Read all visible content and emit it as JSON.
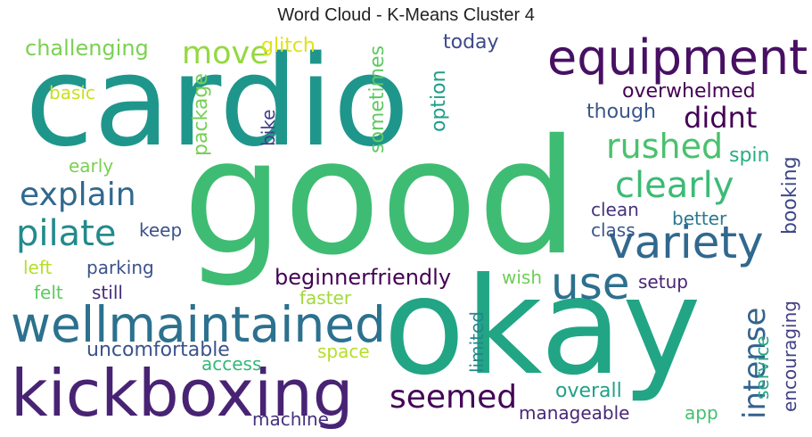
{
  "chart_data": {
    "type": "wordcloud",
    "title": "Word Cloud - K-Means Cluster 4",
    "words": [
      {
        "text": "good",
        "color": "#3fbc73"
      },
      {
        "text": "okay",
        "color": "#21a585"
      },
      {
        "text": "cardio",
        "color": "#1f968b"
      },
      {
        "text": "kickboxing",
        "color": "#482374"
      },
      {
        "text": "wellmaintained",
        "color": "#2c718e"
      },
      {
        "text": "equipment",
        "color": "#471063"
      },
      {
        "text": "variety",
        "color": "#31688e"
      },
      {
        "text": "use",
        "color": "#2d708e"
      },
      {
        "text": "pilate",
        "color": "#238a8d"
      },
      {
        "text": "explain",
        "color": "#31688e"
      },
      {
        "text": "rushed",
        "color": "#4ac16d"
      },
      {
        "text": "clearly",
        "color": "#3cbb75"
      },
      {
        "text": "seemed",
        "color": "#450457"
      },
      {
        "text": "intense",
        "color": "#33638d"
      },
      {
        "text": "move",
        "color": "#95d840"
      },
      {
        "text": "didnt",
        "color": "#440154"
      },
      {
        "text": "challenging",
        "color": "#7ad151"
      },
      {
        "text": "glitch",
        "color": "#dde318"
      },
      {
        "text": "today",
        "color": "#3e4989"
      },
      {
        "text": "basic",
        "color": "#c8e020"
      },
      {
        "text": "package",
        "color": "#75d054"
      },
      {
        "text": "sometimes",
        "color": "#5ec962"
      },
      {
        "text": "option",
        "color": "#1f9e89"
      },
      {
        "text": "overwhelmed",
        "color": "#440154"
      },
      {
        "text": "though",
        "color": "#39568c"
      },
      {
        "text": "bike",
        "color": "#433e85"
      },
      {
        "text": "early",
        "color": "#7ad151"
      },
      {
        "text": "spin",
        "color": "#29af7f"
      },
      {
        "text": "keep",
        "color": "#3b528b"
      },
      {
        "text": "clean",
        "color": "#46337e"
      },
      {
        "text": "class",
        "color": "#39568c"
      },
      {
        "text": "better",
        "color": "#2a788e"
      },
      {
        "text": "booking",
        "color": "#3e4989"
      },
      {
        "text": "left",
        "color": "#b5de2b"
      },
      {
        "text": "parking",
        "color": "#3b528b"
      },
      {
        "text": "felt",
        "color": "#5ec962"
      },
      {
        "text": "still",
        "color": "#472d7b"
      },
      {
        "text": "beginnerfriendly",
        "color": "#440154"
      },
      {
        "text": "wish",
        "color": "#6ece58"
      },
      {
        "text": "faster",
        "color": "#a0da39"
      },
      {
        "text": "setup",
        "color": "#482475"
      },
      {
        "text": "limited",
        "color": "#25858e"
      },
      {
        "text": "service",
        "color": "#22a884"
      },
      {
        "text": "encouraging",
        "color": "#424086"
      },
      {
        "text": "uncomfortable",
        "color": "#3b528b"
      },
      {
        "text": "access",
        "color": "#35b779"
      },
      {
        "text": "space",
        "color": "#b5de2b"
      },
      {
        "text": "overall",
        "color": "#1fa188"
      },
      {
        "text": "machine",
        "color": "#46327e"
      },
      {
        "text": "manageable",
        "color": "#482878"
      },
      {
        "text": "app",
        "color": "#44bf70"
      }
    ]
  }
}
